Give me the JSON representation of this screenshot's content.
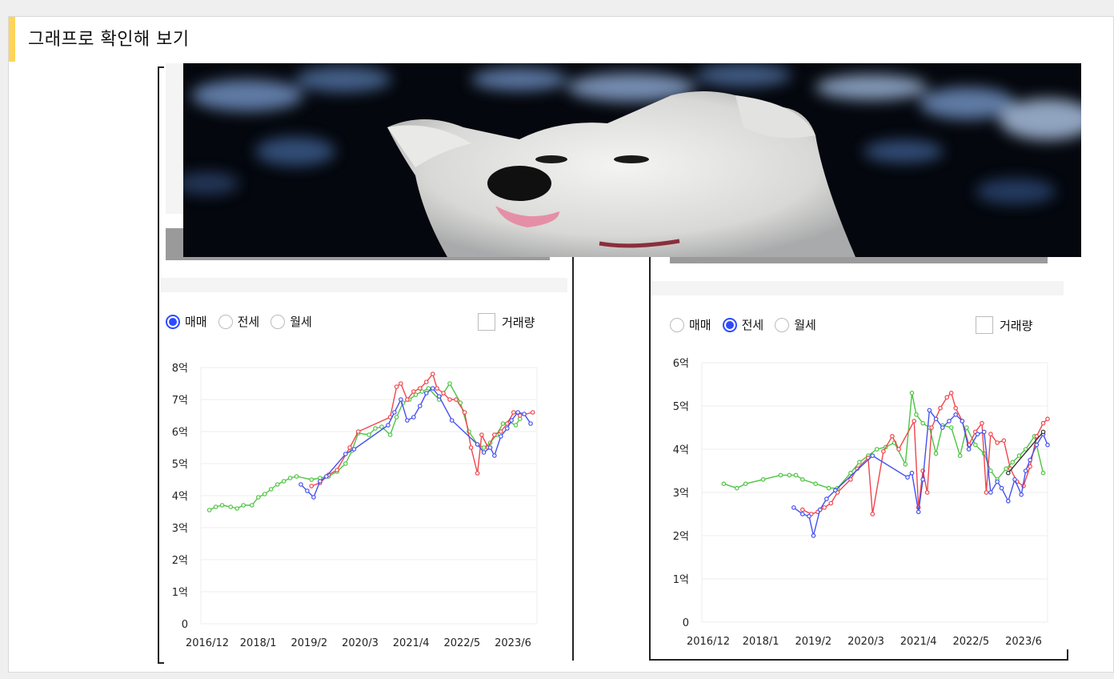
{
  "section_title": "그래프로 확인해 보기",
  "radio_options": [
    "매매",
    "전세",
    "월세"
  ],
  "volume_label": "거래량",
  "left_panel": {
    "selected": "매매"
  },
  "right_panel": {
    "selected": "전세"
  },
  "colors": {
    "red": "#f0454a",
    "blue": "#4450f0",
    "green": "#4ec442",
    "accent": "#ffd45a",
    "radio": "#2d4bff"
  },
  "chart_data": [
    {
      "type": "line",
      "title": "",
      "x_ticks": [
        "2016/12",
        "2018/1",
        "2019/2",
        "2020/3",
        "2021/4",
        "2022/5",
        "2023/6"
      ],
      "y_ticks": [
        "0",
        "1억",
        "2억",
        "3억",
        "4억",
        "5억",
        "6억",
        "7억",
        "8억"
      ],
      "ylim": [
        0,
        8
      ],
      "xlim": [
        2016.5,
        2024.4
      ],
      "series": [
        {
          "color": "green",
          "points": [
            [
              2016.7,
              3.55
            ],
            [
              2016.85,
              3.65
            ],
            [
              2017.0,
              3.7
            ],
            [
              2017.2,
              3.65
            ],
            [
              2017.35,
              3.6
            ],
            [
              2017.5,
              3.7
            ],
            [
              2017.7,
              3.7
            ],
            [
              2017.85,
              3.95
            ],
            [
              2018.0,
              4.05
            ],
            [
              2018.15,
              4.2
            ],
            [
              2018.3,
              4.35
            ],
            [
              2018.45,
              4.45
            ],
            [
              2018.6,
              4.55
            ],
            [
              2018.75,
              4.6
            ],
            [
              2019.1,
              4.5
            ],
            [
              2019.3,
              4.55
            ],
            [
              2019.5,
              4.6
            ],
            [
              2019.7,
              4.75
            ],
            [
              2019.9,
              5.0
            ],
            [
              2020.05,
              5.4
            ],
            [
              2020.2,
              5.95
            ],
            [
              2020.45,
              5.9
            ],
            [
              2020.6,
              6.1
            ],
            [
              2020.75,
              6.15
            ],
            [
              2020.95,
              5.9
            ],
            [
              2021.1,
              6.45
            ],
            [
              2021.25,
              6.9
            ],
            [
              2021.4,
              7.0
            ],
            [
              2021.55,
              7.15
            ],
            [
              2021.7,
              7.25
            ],
            [
              2021.85,
              7.35
            ],
            [
              2022.1,
              7.0
            ],
            [
              2022.35,
              7.5
            ],
            [
              2022.6,
              6.9
            ],
            [
              2022.8,
              6.0
            ],
            [
              2023.0,
              5.6
            ],
            [
              2023.15,
              5.5
            ],
            [
              2023.3,
              5.65
            ],
            [
              2023.45,
              5.9
            ],
            [
              2023.6,
              6.25
            ],
            [
              2023.75,
              6.3
            ],
            [
              2023.9,
              6.2
            ],
            [
              2024.0,
              6.4
            ]
          ]
        },
        {
          "color": "red",
          "points": [
            [
              2019.1,
              4.3
            ],
            [
              2019.3,
              4.4
            ],
            [
              2019.5,
              4.65
            ],
            [
              2019.7,
              4.8
            ],
            [
              2020.0,
              5.5
            ],
            [
              2020.2,
              6.0
            ],
            [
              2020.95,
              6.45
            ],
            [
              2021.1,
              7.4
            ],
            [
              2021.2,
              7.5
            ],
            [
              2021.35,
              7.0
            ],
            [
              2021.5,
              7.25
            ],
            [
              2021.65,
              7.35
            ],
            [
              2021.8,
              7.55
            ],
            [
              2021.95,
              7.8
            ],
            [
              2022.05,
              7.35
            ],
            [
              2022.2,
              7.2
            ],
            [
              2022.35,
              7.0
            ],
            [
              2022.5,
              7.0
            ],
            [
              2022.7,
              6.6
            ],
            [
              2022.85,
              5.5
            ],
            [
              2023.0,
              4.7
            ],
            [
              2023.1,
              5.9
            ],
            [
              2023.25,
              5.5
            ],
            [
              2023.4,
              5.9
            ],
            [
              2023.55,
              6.0
            ],
            [
              2023.7,
              6.25
            ],
            [
              2023.85,
              6.6
            ],
            [
              2024.0,
              6.5
            ],
            [
              2024.3,
              6.6
            ]
          ]
        },
        {
          "color": "blue",
          "points": [
            [
              2018.85,
              4.35
            ],
            [
              2019.0,
              4.15
            ],
            [
              2019.15,
              3.95
            ],
            [
              2019.3,
              4.45
            ],
            [
              2019.45,
              4.6
            ],
            [
              2019.9,
              5.3
            ],
            [
              2020.1,
              5.45
            ],
            [
              2020.9,
              6.2
            ],
            [
              2021.05,
              6.6
            ],
            [
              2021.2,
              7.0
            ],
            [
              2021.35,
              6.35
            ],
            [
              2021.5,
              6.45
            ],
            [
              2021.65,
              6.8
            ],
            [
              2021.8,
              7.2
            ],
            [
              2021.95,
              7.35
            ],
            [
              2022.1,
              7.1
            ],
            [
              2022.4,
              6.35
            ],
            [
              2023.0,
              5.6
            ],
            [
              2023.15,
              5.35
            ],
            [
              2023.3,
              5.5
            ],
            [
              2023.4,
              5.25
            ],
            [
              2023.55,
              5.85
            ],
            [
              2023.7,
              6.1
            ],
            [
              2023.8,
              6.35
            ],
            [
              2023.95,
              6.6
            ],
            [
              2024.1,
              6.55
            ],
            [
              2024.25,
              6.25
            ]
          ]
        }
      ]
    },
    {
      "type": "line",
      "title": "",
      "x_ticks": [
        "2016/12",
        "2018/1",
        "2019/2",
        "2020/3",
        "2021/4",
        "2022/5",
        "2023/6"
      ],
      "y_ticks": [
        "0",
        "1억",
        "2억",
        "3억",
        "4억",
        "5억",
        "6억"
      ],
      "ylim": [
        0,
        6
      ],
      "xlim": [
        2016.5,
        2024.4
      ],
      "series": [
        {
          "color": "green",
          "points": [
            [
              2017.0,
              3.2
            ],
            [
              2017.3,
              3.1
            ],
            [
              2017.5,
              3.2
            ],
            [
              2017.9,
              3.3
            ],
            [
              2018.3,
              3.4
            ],
            [
              2018.5,
              3.4
            ],
            [
              2018.65,
              3.4
            ],
            [
              2018.8,
              3.3
            ],
            [
              2019.1,
              3.2
            ],
            [
              2019.4,
              3.1
            ],
            [
              2019.6,
              3.1
            ],
            [
              2019.9,
              3.45
            ],
            [
              2020.1,
              3.7
            ],
            [
              2020.3,
              3.85
            ],
            [
              2020.5,
              4.0
            ],
            [
              2020.7,
              4.05
            ],
            [
              2020.9,
              4.15
            ],
            [
              2021.15,
              3.65
            ],
            [
              2021.3,
              5.3
            ],
            [
              2021.4,
              4.8
            ],
            [
              2021.55,
              4.6
            ],
            [
              2021.7,
              4.5
            ],
            [
              2021.85,
              3.9
            ],
            [
              2022.0,
              4.55
            ],
            [
              2022.2,
              4.5
            ],
            [
              2022.4,
              3.85
            ],
            [
              2022.55,
              4.5
            ],
            [
              2022.75,
              4.1
            ],
            [
              2022.95,
              3.9
            ],
            [
              2023.1,
              3.5
            ],
            [
              2023.25,
              3.3
            ],
            [
              2023.45,
              3.55
            ],
            [
              2023.6,
              3.7
            ],
            [
              2023.75,
              3.85
            ],
            [
              2023.9,
              4.0
            ],
            [
              2024.1,
              4.3
            ],
            [
              2024.3,
              3.45
            ]
          ]
        },
        {
          "color": "red",
          "points": [
            [
              2018.8,
              2.6
            ],
            [
              2019.0,
              2.5
            ],
            [
              2019.15,
              2.55
            ],
            [
              2019.3,
              2.65
            ],
            [
              2019.45,
              2.75
            ],
            [
              2019.6,
              3.0
            ],
            [
              2019.9,
              3.3
            ],
            [
              2020.05,
              3.55
            ],
            [
              2020.3,
              3.8
            ],
            [
              2020.4,
              2.5
            ],
            [
              2020.65,
              3.95
            ],
            [
              2020.85,
              4.3
            ],
            [
              2021.0,
              4.0
            ],
            [
              2021.35,
              4.65
            ],
            [
              2021.45,
              2.65
            ],
            [
              2021.55,
              3.5
            ],
            [
              2021.65,
              3.0
            ],
            [
              2021.75,
              4.5
            ],
            [
              2021.95,
              4.95
            ],
            [
              2022.1,
              5.2
            ],
            [
              2022.2,
              5.3
            ],
            [
              2022.3,
              4.95
            ],
            [
              2022.45,
              4.65
            ],
            [
              2022.6,
              4.1
            ],
            [
              2022.75,
              4.4
            ],
            [
              2022.9,
              4.6
            ],
            [
              2023.0,
              3.0
            ],
            [
              2023.1,
              4.35
            ],
            [
              2023.25,
              4.15
            ],
            [
              2023.4,
              4.2
            ],
            [
              2023.55,
              3.55
            ],
            [
              2023.7,
              3.25
            ],
            [
              2023.85,
              3.15
            ],
            [
              2024.0,
              3.6
            ],
            [
              2024.15,
              4.3
            ],
            [
              2024.3,
              4.6
            ],
            [
              2024.4,
              4.7
            ]
          ]
        },
        {
          "color": "blue",
          "points": [
            [
              2018.6,
              2.65
            ],
            [
              2018.8,
              2.5
            ],
            [
              2018.95,
              2.45
            ],
            [
              2019.05,
              2.0
            ],
            [
              2019.2,
              2.6
            ],
            [
              2019.35,
              2.85
            ],
            [
              2019.55,
              3.05
            ],
            [
              2020.4,
              3.85
            ],
            [
              2021.2,
              3.35
            ],
            [
              2021.3,
              3.45
            ],
            [
              2021.45,
              2.55
            ],
            [
              2021.55,
              3.3
            ],
            [
              2021.7,
              4.9
            ],
            [
              2021.85,
              4.7
            ],
            [
              2022.0,
              4.5
            ],
            [
              2022.15,
              4.65
            ],
            [
              2022.3,
              4.8
            ],
            [
              2022.45,
              4.65
            ],
            [
              2022.6,
              4.0
            ],
            [
              2022.8,
              4.35
            ],
            [
              2022.95,
              4.4
            ],
            [
              2023.1,
              3.0
            ],
            [
              2023.25,
              3.25
            ],
            [
              2023.35,
              3.1
            ],
            [
              2023.5,
              2.8
            ],
            [
              2023.65,
              3.3
            ],
            [
              2023.8,
              2.95
            ],
            [
              2023.9,
              3.5
            ],
            [
              2024.0,
              3.75
            ],
            [
              2024.15,
              4.1
            ],
            [
              2024.3,
              4.35
            ],
            [
              2024.4,
              4.1
            ]
          ]
        },
        {
          "color": "#333",
          "points": [
            [
              2023.5,
              3.45
            ],
            [
              2024.3,
              4.4
            ]
          ]
        }
      ]
    }
  ]
}
